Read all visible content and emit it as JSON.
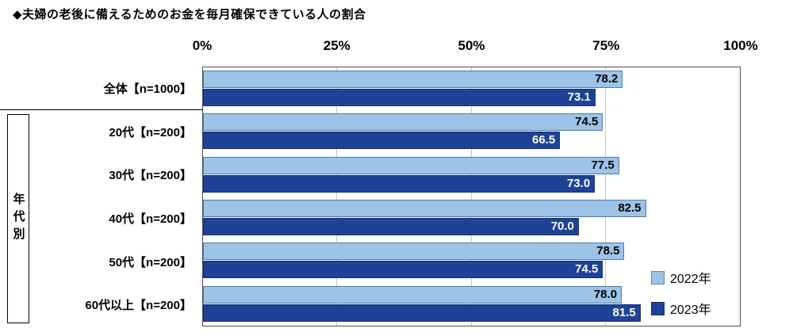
{
  "title": "◆夫婦の老後に備えるためのお金を毎月確保できている人の割合",
  "group_label": "年代別",
  "axis": {
    "ticks": [
      {
        "label": "0%",
        "pct": 0
      },
      {
        "label": "25%",
        "pct": 25
      },
      {
        "label": "50%",
        "pct": 50
      },
      {
        "label": "75%",
        "pct": 75
      },
      {
        "label": "100%",
        "pct": 100
      }
    ]
  },
  "legend": [
    {
      "label": "2022年",
      "color": "#9DC3E6"
    },
    {
      "label": "2023年",
      "color": "#1E4296"
    }
  ],
  "chart_data": {
    "type": "bar",
    "orientation": "horizontal",
    "title": "◆夫婦の老後に備えるためのお金を毎月確保できている人の割合",
    "categories": [
      "全体【n=1000】",
      "20代【n=200】",
      "30代【n=200】",
      "40代【n=200】",
      "50代【n=200】",
      "60代以上【n=200】"
    ],
    "series": [
      {
        "name": "2022年",
        "color": "#9DC3E6",
        "label_color": "#000000",
        "values": [
          78.2,
          74.5,
          77.5,
          82.5,
          78.5,
          78.0
        ],
        "labels": [
          "78.2",
          "74.5",
          "77.5",
          "82.5",
          "78.5",
          "78.0"
        ]
      },
      {
        "name": "2023年",
        "color": "#1E4296",
        "label_color": "#FFFFFF",
        "values": [
          73.1,
          66.5,
          73.0,
          70.0,
          74.5,
          81.5
        ],
        "labels": [
          "73.1",
          "66.5",
          "73.0",
          "70.0",
          "74.5",
          "81.5"
        ]
      }
    ],
    "xlim": [
      0,
      100
    ],
    "gridlines_pct": [
      25,
      50,
      75
    ],
    "grid": true,
    "legend_position": "inside-right-bottom",
    "group_bracket_label": "年代別",
    "group_bracket_categories": [
      "20代【n=200】",
      "30代【n=200】",
      "40代【n=200】",
      "50代【n=200】",
      "60代以上【n=200】"
    ]
  }
}
